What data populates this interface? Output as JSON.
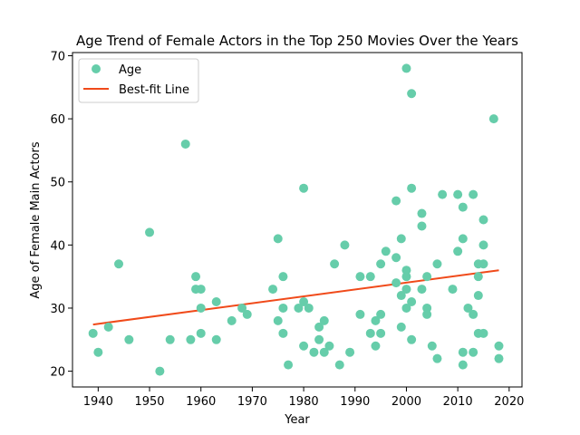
{
  "chart_data": {
    "type": "scatter",
    "title": "Age Trend of Female Actors in the Top 250 Movies Over the Years",
    "xlabel": "Year",
    "ylabel": "Age of Female Main Actors",
    "xlim": [
      1935,
      2022.5
    ],
    "ylim": [
      17.5,
      70.5
    ],
    "xticks": [
      1940,
      1950,
      1960,
      1970,
      1980,
      1990,
      2000,
      2010,
      2020
    ],
    "yticks": [
      20,
      30,
      40,
      50,
      60,
      70
    ],
    "grid": false,
    "legend_position": "top-left",
    "series": [
      {
        "name": "Age",
        "kind": "scatter",
        "color": "#66cdaa",
        "points": [
          [
            1939,
            26
          ],
          [
            1940,
            23
          ],
          [
            1942,
            27
          ],
          [
            1944,
            37
          ],
          [
            1946,
            25
          ],
          [
            1950,
            42
          ],
          [
            1952,
            20
          ],
          [
            1954,
            25
          ],
          [
            1957,
            56
          ],
          [
            1958,
            25
          ],
          [
            1959,
            35
          ],
          [
            1959,
            33
          ],
          [
            1960,
            33
          ],
          [
            1960,
            30
          ],
          [
            1960,
            26
          ],
          [
            1963,
            31
          ],
          [
            1963,
            25
          ],
          [
            1966,
            28
          ],
          [
            1968,
            30
          ],
          [
            1969,
            29
          ],
          [
            1974,
            33
          ],
          [
            1975,
            41
          ],
          [
            1975,
            28
          ],
          [
            1976,
            35
          ],
          [
            1976,
            30
          ],
          [
            1976,
            26
          ],
          [
            1977,
            21
          ],
          [
            1979,
            30
          ],
          [
            1980,
            49
          ],
          [
            1980,
            31
          ],
          [
            1980,
            24
          ],
          [
            1981,
            30
          ],
          [
            1982,
            23
          ],
          [
            1983,
            27
          ],
          [
            1983,
            25
          ],
          [
            1984,
            28
          ],
          [
            1984,
            23
          ],
          [
            1985,
            24
          ],
          [
            1986,
            37
          ],
          [
            1987,
            21
          ],
          [
            1988,
            40
          ],
          [
            1989,
            23
          ],
          [
            1991,
            35
          ],
          [
            1991,
            29
          ],
          [
            1993,
            35
          ],
          [
            1993,
            26
          ],
          [
            1994,
            28
          ],
          [
            1994,
            24
          ],
          [
            1995,
            37
          ],
          [
            1995,
            29
          ],
          [
            1995,
            26
          ],
          [
            1996,
            39
          ],
          [
            1998,
            47
          ],
          [
            1998,
            38
          ],
          [
            1998,
            34
          ],
          [
            1999,
            41
          ],
          [
            1999,
            32
          ],
          [
            1999,
            27
          ],
          [
            2000,
            68
          ],
          [
            2000,
            36
          ],
          [
            2000,
            35
          ],
          [
            2000,
            33
          ],
          [
            2000,
            30
          ],
          [
            2001,
            64
          ],
          [
            2001,
            49
          ],
          [
            2001,
            31
          ],
          [
            2001,
            25
          ],
          [
            2003,
            45
          ],
          [
            2003,
            43
          ],
          [
            2003,
            33
          ],
          [
            2004,
            35
          ],
          [
            2004,
            30
          ],
          [
            2004,
            29
          ],
          [
            2005,
            24
          ],
          [
            2006,
            37
          ],
          [
            2006,
            22
          ],
          [
            2007,
            48
          ],
          [
            2009,
            33
          ],
          [
            2010,
            48
          ],
          [
            2010,
            39
          ],
          [
            2011,
            46
          ],
          [
            2011,
            41
          ],
          [
            2011,
            23
          ],
          [
            2011,
            21
          ],
          [
            2012,
            30
          ],
          [
            2013,
            48
          ],
          [
            2013,
            29
          ],
          [
            2013,
            23
          ],
          [
            2014,
            37
          ],
          [
            2014,
            35
          ],
          [
            2014,
            32
          ],
          [
            2014,
            26
          ],
          [
            2015,
            44
          ],
          [
            2015,
            40
          ],
          [
            2015,
            37
          ],
          [
            2015,
            26
          ],
          [
            2017,
            60
          ],
          [
            2018,
            24
          ],
          [
            2018,
            22
          ]
        ]
      },
      {
        "name": "Best-fit Line",
        "kind": "line",
        "color": "#f04a1a",
        "x": [
          1939,
          2018
        ],
        "y": [
          27.4,
          36.0
        ]
      }
    ]
  }
}
